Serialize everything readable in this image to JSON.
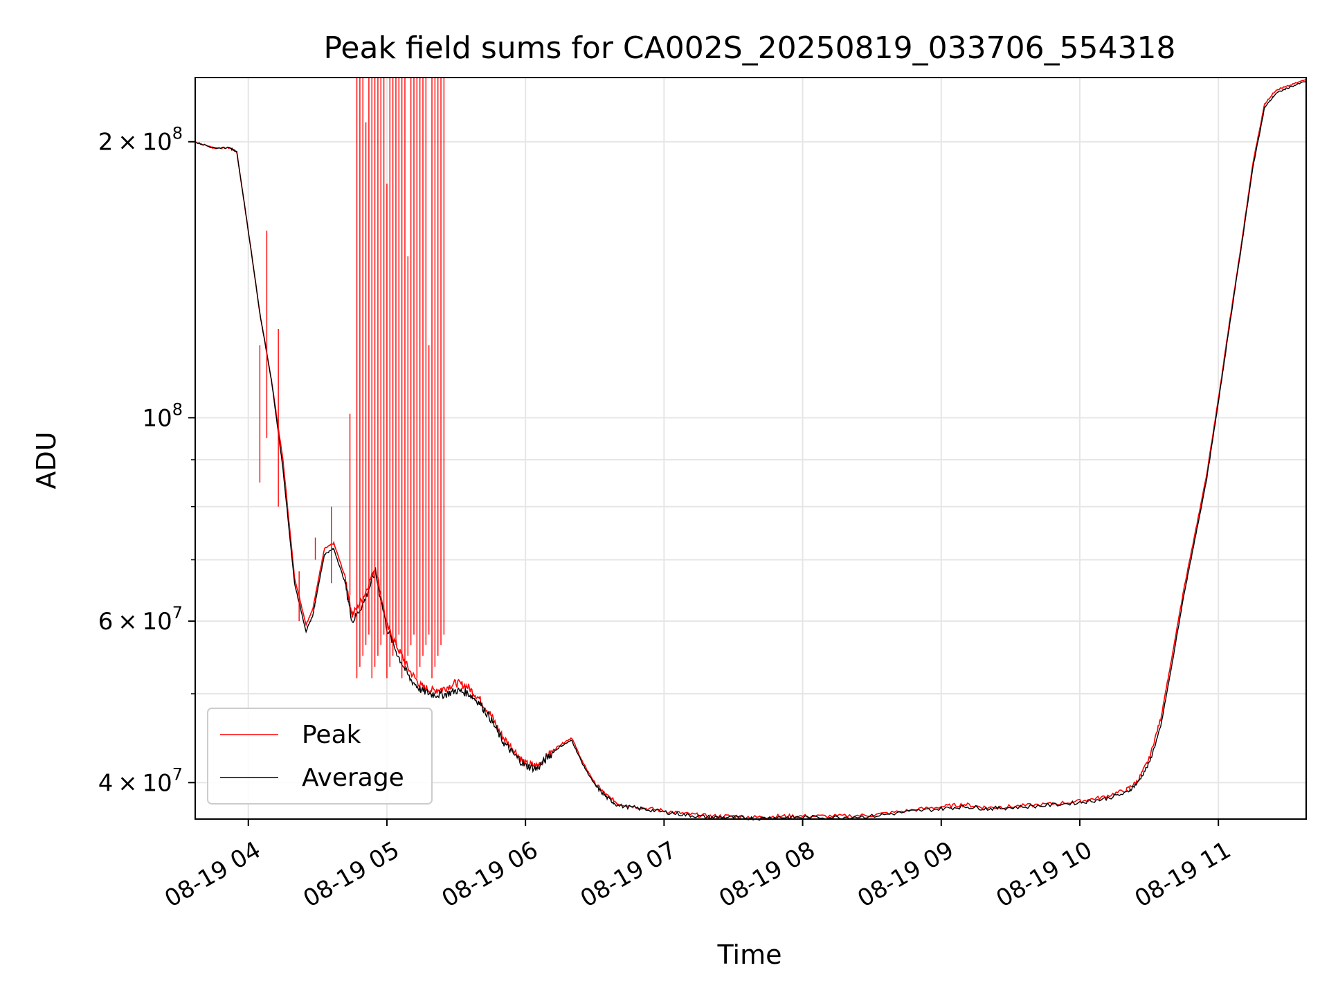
{
  "chart_data": {
    "type": "line",
    "title": "Peak field sums for CA002S_20250819_033706_554318",
    "xlabel": "Time",
    "ylabel": "ADU",
    "yscale": "log",
    "ylim": [
      36500000,
      235000000
    ],
    "xlim": [
      "08-19 03:37",
      "08-19 11:38"
    ],
    "grid": true,
    "legend_position": "lower-left",
    "x_ticks": [
      "08-19 04",
      "08-19 05",
      "08-19 06",
      "08-19 07",
      "08-19 08",
      "08-19 09",
      "08-19 10",
      "08-19 11"
    ],
    "y_ticks": [
      {
        "value": 40000000,
        "mant": "4",
        "exp": "7"
      },
      {
        "value": 60000000,
        "mant": "6",
        "exp": "7"
      },
      {
        "value": 100000000,
        "mant": "",
        "exp": "8"
      },
      {
        "value": 200000000,
        "mant": "2",
        "exp": "8"
      }
    ],
    "x": [
      "03:37",
      "03:45",
      "03:52",
      "03:55",
      "04:00",
      "04:05",
      "04:10",
      "04:15",
      "04:20",
      "04:25",
      "04:28",
      "04:30",
      "04:33",
      "04:37",
      "04:42",
      "04:45",
      "04:50",
      "04:55",
      "05:00",
      "05:05",
      "05:10",
      "05:15",
      "05:20",
      "05:25",
      "05:30",
      "05:35",
      "05:40",
      "05:45",
      "05:50",
      "05:55",
      "06:00",
      "06:05",
      "06:10",
      "06:15",
      "06:20",
      "06:25",
      "06:30",
      "06:35",
      "06:40",
      "06:50",
      "07:00",
      "07:10",
      "07:20",
      "07:30",
      "07:40",
      "07:50",
      "08:00",
      "08:15",
      "08:30",
      "08:45",
      "09:00",
      "09:10",
      "09:20",
      "09:30",
      "09:45",
      "10:00",
      "10:10",
      "10:20",
      "10:25",
      "10:30",
      "10:35",
      "10:40",
      "10:45",
      "10:50",
      "10:55",
      "11:00",
      "11:05",
      "11:10",
      "11:15",
      "11:20",
      "11:25",
      "11:30",
      "11:38"
    ],
    "series": [
      {
        "name": "Peak",
        "color": "#ff0000",
        "values": [
          200000000,
          197000000,
          197000000,
          195000000,
          160000000,
          130000000,
          110000000,
          90000000,
          67000000,
          59500000,
          62000000,
          66000000,
          72000000,
          73000000,
          67000000,
          61000000,
          64000000,
          69000000,
          59500000,
          56000000,
          53000000,
          51000000,
          50500000,
          50800000,
          51500000,
          51000000,
          49500000,
          47500000,
          45000000,
          43500000,
          42000000,
          41800000,
          43000000,
          44000000,
          44800000,
          42000000,
          40000000,
          38800000,
          38000000,
          37600000,
          37300000,
          37000000,
          36800000,
          36800000,
          36700000,
          36800000,
          36800000,
          36800000,
          36900000,
          37300000,
          37700000,
          37900000,
          37600000,
          37700000,
          37900000,
          38200000,
          38600000,
          39300000,
          40200000,
          42500000,
          47000000,
          55000000,
          65000000,
          75000000,
          87000000,
          105000000,
          128000000,
          155000000,
          190000000,
          220000000,
          228000000,
          230000000,
          234000000
        ]
      },
      {
        "name": "Average",
        "color": "#000000",
        "values": [
          200000000,
          197000000,
          197000000,
          195000000,
          160000000,
          130000000,
          110000000,
          88000000,
          66000000,
          58500000,
          61000000,
          65000000,
          71000000,
          72000000,
          66000000,
          60000000,
          63000000,
          68000000,
          59000000,
          55000000,
          52000000,
          50500000,
          50000000,
          50000000,
          50500000,
          50200000,
          49000000,
          47000000,
          44500000,
          43000000,
          41800000,
          41500000,
          42800000,
          43800000,
          44500000,
          41800000,
          39800000,
          38600000,
          37800000,
          37500000,
          37200000,
          36900000,
          36700000,
          36700000,
          36600000,
          36700000,
          36700000,
          36700000,
          36800000,
          37200000,
          37500000,
          37700000,
          37500000,
          37600000,
          37800000,
          38100000,
          38400000,
          39000000,
          40000000,
          42000000,
          46000000,
          54000000,
          64000000,
          74000000,
          86000000,
          104000000,
          127000000,
          154000000,
          188000000,
          218000000,
          226000000,
          229000000,
          233000000
        ]
      }
    ]
  }
}
